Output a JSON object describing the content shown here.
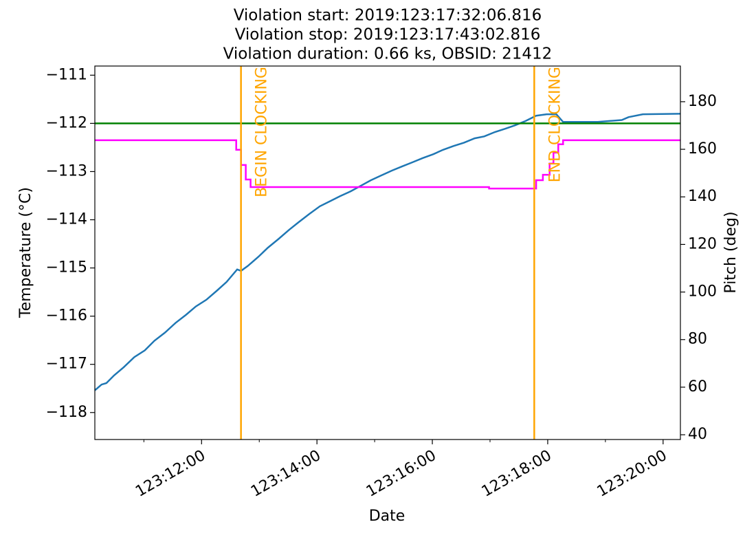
{
  "chart_data": {
    "type": "line",
    "title": [
      "Violation start: 2019:123:17:32:06.816",
      "Violation stop: 2019:123:17:43:02.816",
      "Violation duration: 0.66 ks, OBSID: 21412"
    ],
    "xlabel": "Date",
    "ylabel": "Temperature (°C)",
    "y2label": "Pitch (deg)",
    "xlim": [
      "123:10:09",
      "123:20:18"
    ],
    "xticks": [
      "123:12:00",
      "123:14:00",
      "123:16:00",
      "123:18:00",
      "123:20:00"
    ],
    "xminorticks": [
      "123:11:00",
      "123:13:00",
      "123:15:00",
      "123:17:00",
      "123:19:00"
    ],
    "ylim": [
      -118.56,
      -110.81
    ],
    "yticks": [
      {
        "value": -118,
        "label": "−118"
      },
      {
        "value": -117,
        "label": "−117"
      },
      {
        "value": -116,
        "label": "−116"
      },
      {
        "value": -115,
        "label": "−115"
      },
      {
        "value": -114,
        "label": "−114"
      },
      {
        "value": -113,
        "label": "−113"
      },
      {
        "value": -112,
        "label": "−112"
      },
      {
        "value": -111,
        "label": "−111"
      }
    ],
    "y2lim": [
      38,
      195
    ],
    "y2ticks": [
      40,
      60,
      80,
      100,
      120,
      140,
      160,
      180
    ],
    "series": [
      {
        "color": "#1f77b4",
        "axis": "y",
        "x": [
          "123:10:09",
          "123:10:16",
          "123:10:21",
          "123:10:29",
          "123:10:39",
          "123:10:50",
          "123:11:01",
          "123:11:11",
          "123:11:22",
          "123:11:33",
          "123:11:44",
          "123:11:54",
          "123:12:05",
          "123:12:16",
          "123:12:26",
          "123:12:37",
          "123:12:41",
          "123:12:48",
          "123:12:59",
          "123:13:09",
          "123:13:20",
          "123:13:31",
          "123:13:41",
          "123:13:52",
          "123:14:03",
          "123:14:14",
          "123:14:24",
          "123:14:35",
          "123:14:46",
          "123:14:56",
          "123:15:07",
          "123:15:18",
          "123:15:29",
          "123:15:39",
          "123:15:50",
          "123:16:01",
          "123:16:11",
          "123:16:22",
          "123:16:33",
          "123:16:44",
          "123:16:54",
          "123:17:05",
          "123:17:16",
          "123:17:26",
          "123:17:37",
          "123:17:48",
          "123:17:59",
          "123:18:09",
          "123:18:16",
          "123:18:52",
          "123:19:17",
          "123:19:24",
          "123:19:39",
          "123:20:18"
        ],
        "values": [
          -117.54,
          -117.42,
          -117.39,
          -117.23,
          -117.06,
          -116.85,
          -116.71,
          -116.51,
          -116.34,
          -116.14,
          -115.97,
          -115.8,
          -115.66,
          -115.47,
          -115.29,
          -115.03,
          -115.06,
          -114.96,
          -114.77,
          -114.58,
          -114.4,
          -114.21,
          -114.05,
          -113.88,
          -113.72,
          -113.61,
          -113.51,
          -113.41,
          -113.29,
          -113.18,
          -113.08,
          -112.98,
          -112.89,
          -112.81,
          -112.72,
          -112.64,
          -112.55,
          -112.47,
          -112.4,
          -112.31,
          -112.27,
          -112.18,
          -112.11,
          -112.04,
          -111.95,
          -111.84,
          -111.81,
          -111.81,
          -111.97,
          -111.97,
          -111.93,
          -111.87,
          -111.81,
          -111.8
        ]
      },
      {
        "color": "#ff00ff",
        "axis": "y2",
        "x": [
          "123:10:09",
          "123:12:36",
          "123:12:36",
          "123:12:41",
          "123:12:41",
          "123:12:46",
          "123:12:46",
          "123:12:51",
          "123:12:51",
          "123:16:59",
          "123:16:59",
          "123:17:48",
          "123:17:48",
          "123:17:55",
          "123:17:55",
          "123:18:02",
          "123:18:02",
          "123:18:06",
          "123:18:06",
          "123:18:11",
          "123:18:11",
          "123:18:16",
          "123:18:16",
          "123:20:18"
        ],
        "values": [
          163.8,
          163.8,
          159.8,
          159.8,
          153.4,
          153.4,
          147.3,
          147.3,
          144.1,
          144.1,
          143.5,
          143.5,
          147,
          147,
          149.3,
          149.3,
          154,
          154,
          158.6,
          158.6,
          162.1,
          162.1,
          163.8,
          163.8
        ]
      }
    ],
    "hlines": [
      {
        "y": -112,
        "color": "#008000"
      }
    ],
    "vlines": [
      {
        "x": "123:12:41",
        "label": "BEGIN CLOCKING",
        "color": "#ffa500"
      },
      {
        "x": "123:17:46",
        "label": "END CLOCKING",
        "color": "#ffa500"
      }
    ]
  }
}
